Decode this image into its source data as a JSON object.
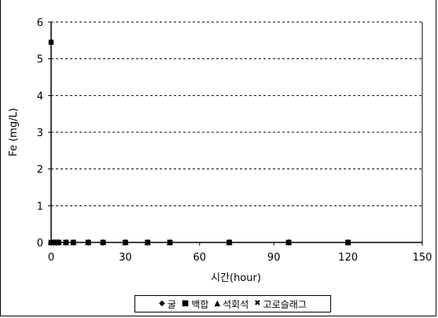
{
  "chart_data": {
    "type": "scatter",
    "title": "",
    "xlabel": "시간(hour)",
    "ylabel": "Fe (mg/L)",
    "xlim": [
      0,
      150
    ],
    "ylim": [
      0,
      6
    ],
    "x_ticks": [
      "0",
      "30",
      "60",
      "90",
      "120",
      "150"
    ],
    "y_ticks": [
      "0",
      "1",
      "2",
      "3",
      "4",
      "5",
      "6"
    ],
    "grid": "horizontal dashed",
    "legend_position": "bottom",
    "series": [
      {
        "name": "굴",
        "marker": "diamond",
        "color": "#000000",
        "x": [
          0,
          1,
          2,
          3,
          6,
          9,
          15,
          21,
          30,
          39,
          48,
          72,
          96,
          120
        ],
        "y": [
          0,
          0,
          0,
          0,
          0,
          0,
          0,
          0,
          0,
          0,
          0,
          0,
          0,
          0
        ]
      },
      {
        "name": "백합",
        "marker": "square",
        "color": "#000000",
        "x": [
          0,
          1,
          2,
          3,
          6,
          9,
          15,
          21,
          30,
          39,
          48,
          72,
          96,
          120
        ],
        "y": [
          5.45,
          0,
          0,
          0,
          0,
          0,
          0,
          0,
          0,
          0,
          0,
          0,
          0,
          0
        ]
      },
      {
        "name": "석회석",
        "marker": "triangle",
        "color": "#000000",
        "x": [
          0,
          1,
          2,
          3,
          6,
          9,
          15,
          21,
          30,
          39,
          48,
          72,
          96,
          120
        ],
        "y": [
          0,
          0,
          0,
          0,
          0,
          0,
          0,
          0,
          0,
          0,
          0,
          0,
          0,
          0
        ]
      },
      {
        "name": "고로슬래그",
        "marker": "x",
        "color": "#000000",
        "x": [
          0,
          1,
          2,
          3,
          6,
          9,
          15,
          21,
          30,
          39,
          48,
          72,
          96,
          120
        ],
        "y": [
          0,
          0,
          0,
          0,
          0,
          0,
          0,
          0,
          0,
          0,
          0,
          0,
          0,
          0
        ]
      }
    ]
  },
  "legend": {
    "items": [
      {
        "marker_glyph": "◆",
        "label": "굴"
      },
      {
        "marker_glyph": "■",
        "label": "백합"
      },
      {
        "marker_glyph": "▲",
        "label": "석회석"
      },
      {
        "marker_glyph": "✖",
        "label": "고로슬래그"
      }
    ]
  }
}
